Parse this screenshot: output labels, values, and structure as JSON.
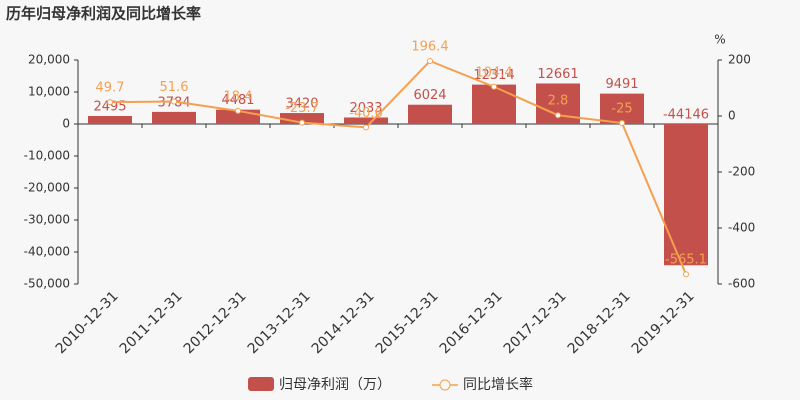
{
  "chart_data": {
    "type": "bar_line",
    "title": "历年归母净利润及同比增长率",
    "y2_unit": "%",
    "categories": [
      "2010-12-31",
      "2011-12-31",
      "2012-12-31",
      "2013-12-31",
      "2014-12-31",
      "2015-12-31",
      "2016-12-31",
      "2017-12-31",
      "2018-12-31",
      "2019-12-31"
    ],
    "series": [
      {
        "name": "归母净利润（万）",
        "type": "bar",
        "color": "#c4504c",
        "values": [
          2495,
          3784,
          4481,
          3420,
          2033,
          6024,
          12314,
          12661,
          9491,
          -44146
        ]
      },
      {
        "name": "同比增长率",
        "type": "line",
        "axis": "y2",
        "color": "#f5a04f",
        "values": [
          49.7,
          51.6,
          18.4,
          -23.7,
          -40.6,
          196.4,
          104.4,
          2.8,
          -25,
          -565.1
        ]
      }
    ],
    "ylim": [
      -50000,
      20000
    ],
    "yticks": [
      {
        "value": 20000,
        "label": "20,000"
      },
      {
        "value": 10000,
        "label": "10,000"
      },
      0,
      {
        "value": -10000,
        "label": "-10,000"
      },
      {
        "value": -20000,
        "label": "-20,000"
      },
      {
        "value": -30000,
        "label": "-30,000"
      },
      {
        "value": -40000,
        "label": "-40,000"
      },
      {
        "value": -50000,
        "label": "-50,000"
      }
    ],
    "y2lim": [
      -600,
      200
    ],
    "y2ticks": [
      200,
      0,
      -200,
      -400,
      -600
    ]
  }
}
